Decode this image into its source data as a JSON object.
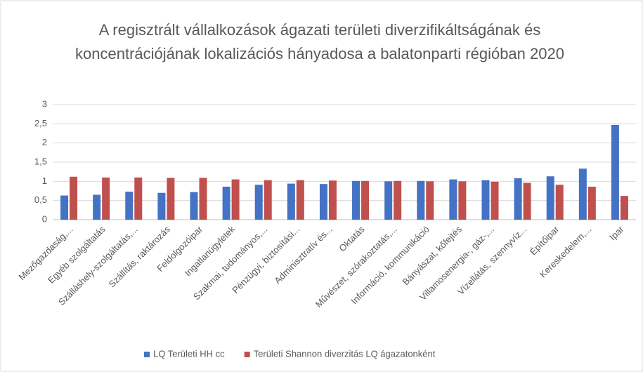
{
  "chart_data": {
    "type": "bar",
    "title": "A regisztrált vállalkozások ágazati területi diverzifikáltságának és koncentrációjának lokalizációs hányadosa a balatonparti régióban 2020",
    "categories": [
      "Mezőgazdaság,...",
      "Egyéb szolgáltatás",
      "Szálláshely-szolgáltatás,...",
      "Szállítás, raktározás",
      "Feldolgozóipar",
      "Ingatlanügyletek",
      "Szakmai, tudományos,...",
      "Pénzügyi, biztosítási...",
      "Adminisztratív és...",
      "Oktatás",
      "Művészet, szórakoztatás,...",
      "Információ, kommunikáció",
      "Bányászat, kőfejtés",
      "Villamosenergia-, gáz-,...",
      "Vízellátás, szennyvíz...",
      "Építőipar",
      "Kereskedelem,...",
      "Ipar"
    ],
    "series": [
      {
        "name": "LQ Területi HH cc",
        "color": "#4472c4",
        "values": [
          0.63,
          0.65,
          0.73,
          0.7,
          0.72,
          0.86,
          0.91,
          0.94,
          0.93,
          1.01,
          1.0,
          1.01,
          1.05,
          1.03,
          1.08,
          1.13,
          1.33,
          2.47
        ]
      },
      {
        "name": "Területi Shannon diverzitás LQ ágazatonként",
        "color": "#c0504d",
        "values": [
          1.12,
          1.1,
          1.1,
          1.09,
          1.09,
          1.05,
          1.03,
          1.03,
          1.02,
          1.01,
          1.01,
          1.0,
          1.0,
          0.99,
          0.96,
          0.91,
          0.86,
          0.62
        ]
      }
    ],
    "ylim": [
      0,
      3
    ],
    "yticks": [
      0,
      {
        "value": 0.5,
        "label": "0,5"
      },
      1,
      {
        "value": 1.5,
        "label": "1,5"
      },
      2,
      {
        "value": 2.5,
        "label": "2,5"
      },
      3
    ],
    "grid": true,
    "legend": "bottom"
  }
}
